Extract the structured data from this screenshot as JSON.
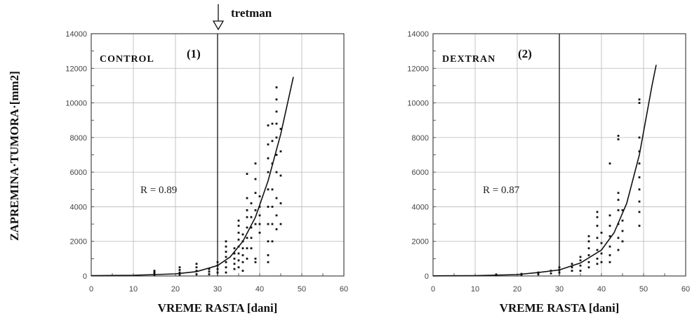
{
  "ylabel": "ZAPREMINA·TUMORA·[mm2]",
  "treatment_annotation": "tretman",
  "chart_data": [
    {
      "type": "scatter",
      "panel_label": "CONTROL",
      "panel_number": "(1)",
      "xlabel": "VREME RASTA [dani]",
      "xlim": [
        0,
        60
      ],
      "ylim": [
        0,
        14000
      ],
      "xticks": [
        "0",
        "10",
        "20",
        "30",
        "40",
        "50",
        "60"
      ],
      "yticks": [
        "0",
        "2000",
        "4000",
        "6000",
        "8000",
        "10000",
        "12000",
        "14000"
      ],
      "r_text": "R = 0.89",
      "treatment_x": 30,
      "points": [
        {
          "x": 15,
          "y": [
            50,
            120,
            200,
            300
          ]
        },
        {
          "x": 21,
          "y": [
            80,
            200,
            350,
            500
          ]
        },
        {
          "x": 25,
          "y": [
            100,
            300,
            500,
            700
          ]
        },
        {
          "x": 28,
          "y": [
            100,
            250,
            400
          ]
        },
        {
          "x": 30,
          "y": [
            200,
            400,
            600,
            800
          ]
        },
        {
          "x": 32,
          "y": [
            200,
            500,
            800,
            1100,
            1400,
            1700,
            2000
          ]
        },
        {
          "x": 34,
          "y": [
            400,
            700,
            1000,
            1300,
            1600
          ]
        },
        {
          "x": 35,
          "y": [
            500,
            900,
            1300,
            1700,
            2100,
            2500,
            2900,
            3200
          ]
        },
        {
          "x": 36,
          "y": [
            300,
            800,
            1200,
            1600,
            2000,
            2400
          ]
        },
        {
          "x": 37,
          "y": [
            1000,
            1600,
            2200,
            2800,
            3400,
            3800,
            4500,
            5900
          ]
        },
        {
          "x": 38,
          "y": [
            1600,
            2200,
            2800,
            3400,
            4200
          ]
        },
        {
          "x": 39,
          "y": [
            800,
            1000,
            3000,
            3800,
            4800,
            5600,
            6500
          ]
        },
        {
          "x": 40,
          "y": [
            2500,
            3000,
            3500,
            4000,
            4600
          ]
        },
        {
          "x": 42,
          "y": [
            800,
            1200,
            2000,
            3000,
            4000,
            5000,
            6000,
            6800,
            7600,
            8700
          ]
        },
        {
          "x": 43,
          "y": [
            2000,
            3000,
            4000,
            5000,
            6500,
            7800,
            8800
          ]
        },
        {
          "x": 44,
          "y": [
            2700,
            3500,
            4500,
            6000,
            7000,
            8000,
            8800,
            9500,
            10200,
            10900
          ]
        },
        {
          "x": 45,
          "y": [
            3000,
            4200,
            5800,
            7200,
            8500
          ]
        }
      ],
      "curve": [
        [
          0,
          20
        ],
        [
          10,
          40
        ],
        [
          20,
          120
        ],
        [
          25,
          250
        ],
        [
          30,
          600
        ],
        [
          33,
          1100
        ],
        [
          36,
          2000
        ],
        [
          39,
          3400
        ],
        [
          42,
          5500
        ],
        [
          45,
          8200
        ],
        [
          48,
          11500
        ]
      ]
    },
    {
      "type": "scatter",
      "panel_label": "DEXTRAN",
      "panel_number": "(2)",
      "xlabel": "VREME RASTA [dani]",
      "xlim": [
        0,
        60
      ],
      "ylim": [
        0,
        14000
      ],
      "xticks": [
        "0",
        "10",
        "20",
        "30",
        "40",
        "50",
        "60"
      ],
      "yticks": [
        "0",
        "2000",
        "4000",
        "6000",
        "8000",
        "10000",
        "12000",
        "14000"
      ],
      "r_text": "R = 0.87",
      "treatment_x": 30,
      "points": [
        {
          "x": 15,
          "y": [
            40,
            80
          ]
        },
        {
          "x": 21,
          "y": [
            60,
            120
          ]
        },
        {
          "x": 25,
          "y": [
            100,
            200
          ]
        },
        {
          "x": 28,
          "y": [
            150,
            300
          ]
        },
        {
          "x": 30,
          "y": [
            200,
            350,
            500
          ]
        },
        {
          "x": 33,
          "y": [
            300,
            500,
            700
          ]
        },
        {
          "x": 35,
          "y": [
            300,
            600,
            900,
            1100
          ]
        },
        {
          "x": 37,
          "y": [
            500,
            800,
            1200,
            1600,
            2000,
            2300
          ]
        },
        {
          "x": 39,
          "y": [
            700,
            1000,
            1500,
            2200,
            2900,
            3400,
            3700
          ]
        },
        {
          "x": 40,
          "y": [
            800,
            1300,
            1900,
            2500
          ]
        },
        {
          "x": 42,
          "y": [
            800,
            1200,
            1700,
            2300,
            2900,
            3500,
            6500
          ]
        },
        {
          "x": 44,
          "y": [
            1500,
            2200,
            3000,
            3800,
            4400,
            4800,
            7900,
            8100
          ]
        },
        {
          "x": 45,
          "y": [
            2000,
            2600,
            3200,
            3800
          ]
        },
        {
          "x": 49,
          "y": [
            2900,
            3700,
            4300,
            5000,
            5700,
            6500,
            7200,
            8000,
            10000,
            10200
          ]
        }
      ],
      "curve": [
        [
          0,
          10
        ],
        [
          10,
          20
        ],
        [
          20,
          80
        ],
        [
          25,
          200
        ],
        [
          30,
          350
        ],
        [
          35,
          750
        ],
        [
          40,
          1500
        ],
        [
          43,
          2500
        ],
        [
          46,
          4200
        ],
        [
          49,
          7000
        ],
        [
          52,
          11000
        ],
        [
          53,
          12200
        ]
      ]
    }
  ]
}
